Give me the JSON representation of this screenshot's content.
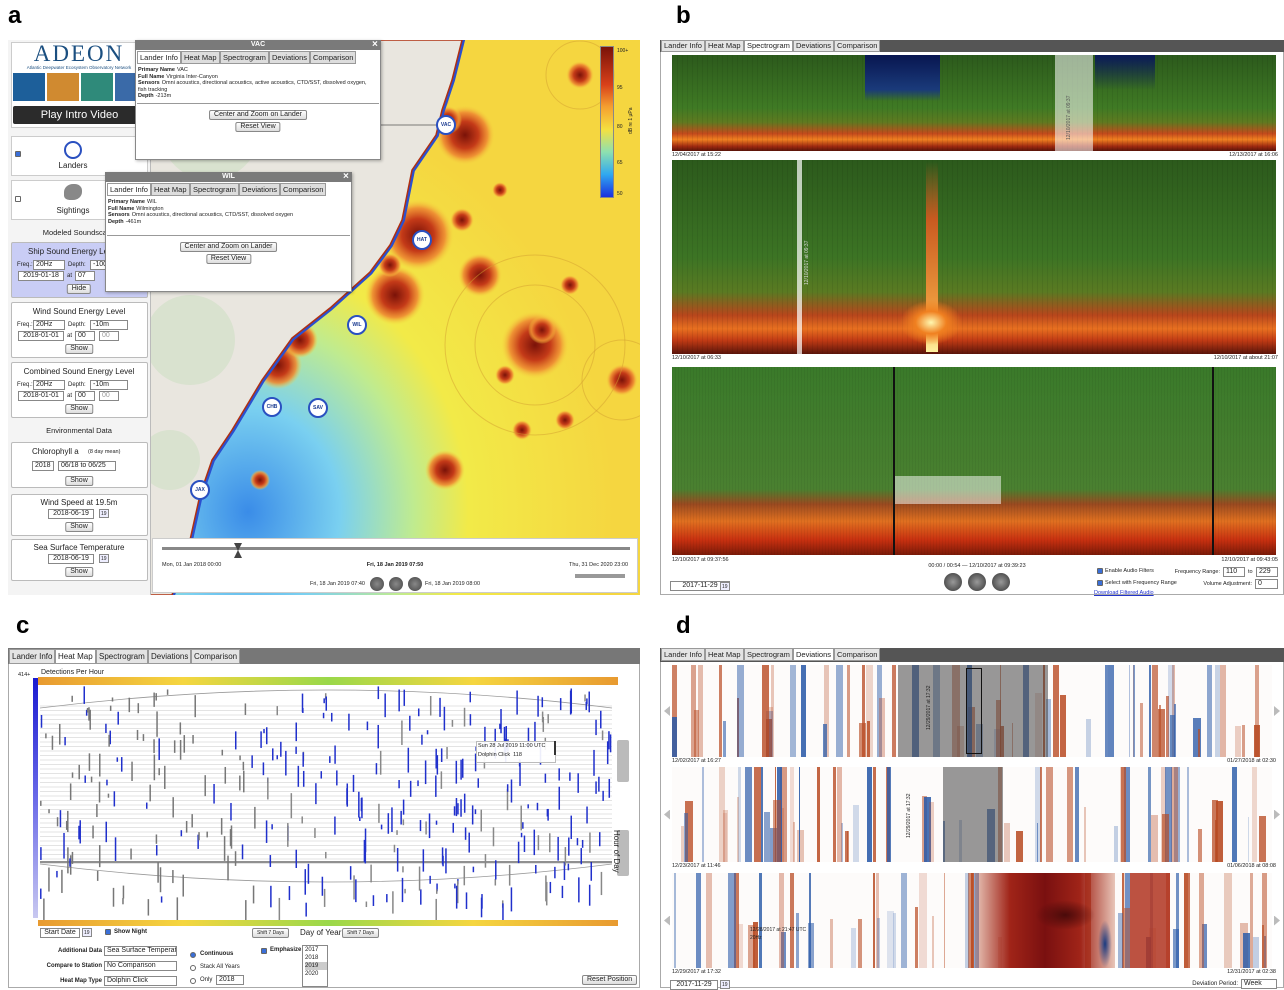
{
  "figure_labels": {
    "a": "a",
    "b": "b",
    "c": "c",
    "d": "d"
  },
  "panel_a": {
    "logo": "ADEON",
    "logo_subtitle": "Atlantic Deepwater Ecosystem Observatory Network",
    "video_button": "Play Intro Video",
    "landers": "Landers",
    "sightings": "Sightings",
    "modeled_header": "Modeled Soundscape",
    "ship": {
      "title": "Ship Sound Energy Le",
      "freq_label": "Freq.:",
      "freq": "20Hz",
      "depth_label": "Depth:",
      "depth": "-100",
      "date": "2019-01-18",
      "at": "at",
      "hour": "07",
      "button": "Hide"
    },
    "wind": {
      "title": "Wind Sound Energy Level",
      "freq_label": "Freq.:",
      "freq": "20Hz",
      "depth_label": "Depth:",
      "depth": "-10m",
      "date": "2018-01-01",
      "at": "at",
      "hour": "00",
      "minute": "00",
      "button": "Show"
    },
    "combined": {
      "title": "Combined Sound Energy Level",
      "freq_label": "Freq.:",
      "freq": "20Hz",
      "depth_label": "Depth:",
      "depth": "-10m",
      "date": "2018-01-01",
      "at": "at",
      "hour": "00",
      "minute": "00",
      "button": "Show"
    },
    "env_header": "Environmental Data",
    "chlorophyll": {
      "title": "Chlorophyll a",
      "note": "(8 day mean)",
      "year": "2018",
      "range": "06/18 to 06/25",
      "button": "Show"
    },
    "wind_speed": {
      "title": "Wind Speed at 19.5m",
      "date": "2018-06-19",
      "calendar": "19",
      "button": "Show"
    },
    "sst": {
      "title": "Sea Surface Temperature",
      "date": "2018-06-19",
      "calendar": "19",
      "button": "Show"
    },
    "popups": [
      {
        "title": "VAC",
        "close": "×",
        "tabs": [
          "Lander Info",
          "Heat Map",
          "Spectrogram",
          "Deviations",
          "Comparison"
        ],
        "fields": [
          {
            "label": "Primary Name",
            "value": "VAC"
          },
          {
            "label": "Full Name",
            "value": "Virginia Inter-Canyon"
          },
          {
            "label": "Sensors",
            "value": "Omni acoustics, directional acoustics, active acoustics, CTD/SST, dissolved oxygen, fish tracking"
          },
          {
            "label": "Depth",
            "value": "-213m"
          }
        ],
        "buttons": [
          "Center and Zoom on Lander",
          "Reset View"
        ]
      },
      {
        "title": "WIL",
        "close": "×",
        "tabs": [
          "Lander Info",
          "Heat Map",
          "Spectrogram",
          "Deviations",
          "Comparison"
        ],
        "fields": [
          {
            "label": "Primary Name",
            "value": "WIL"
          },
          {
            "label": "Full Name",
            "value": "Wilmington"
          },
          {
            "label": "Sensors",
            "value": "Omni acoustics, directional acoustics, CTD/SST, dissolved oxygen"
          },
          {
            "label": "Depth",
            "value": "-461m"
          }
        ],
        "buttons": [
          "Center and Zoom on Lander",
          "Reset View"
        ]
      }
    ],
    "markers": [
      "VAC",
      "HAT",
      "WIL",
      "CHB",
      "SAV",
      "JAX"
    ],
    "colorbar": {
      "ticks": [
        "100+",
        "95",
        "80",
        "65",
        "50"
      ],
      "label": "dB re 1 µPa"
    },
    "timeline": {
      "start": "Mon, 01 Jan 2018 00:00",
      "current": "Fri, 18 Jan 2019 07:50",
      "end": "Thu, 31 Dec 2020 23:00",
      "prev": "Fri, 18 Jan 2019 07:40",
      "next": "Fri, 18 Jan 2019 08:00"
    }
  },
  "panel_b": {
    "tabs": [
      "Lander Info",
      "Heat Map",
      "Spectrogram",
      "Deviations",
      "Comparison"
    ],
    "spectrograms": [
      {
        "start": "12/04/2017 at 15:22",
        "end": "12/13/2017 at 16:06",
        "marker": "12/10/2017 at 09:37"
      },
      {
        "start": "12/10/2017 at 06:33",
        "end": "12/10/2017 at about 21:07",
        "marker": "12/10/2017 at 09:37"
      },
      {
        "start": "12/10/2017 at 09:37:56",
        "end": "12/10/2017 at 09:43:05",
        "playback": "00:00 / 00:54 — 12/10/2017 at 09:39:23"
      }
    ],
    "date": "2017-11-29",
    "calendar": "19",
    "enable_filters": "Enable Audio Filters",
    "select_range": "Select with Frequency Range",
    "download": "Download Filtered Audio",
    "freq_range_label": "Frequency Range:",
    "freq_low": "110",
    "to": "to",
    "freq_high": "229",
    "volume_label": "Volume Adjustment:",
    "volume": "0"
  },
  "panel_c": {
    "tabs": [
      "Lander Info",
      "Heat Map",
      "Spectrogram",
      "Deviations",
      "Comparison"
    ],
    "colorbar_title": "Detections Per Hour",
    "colorbar_max": "414+",
    "tooltip_time": "Sun 28 Jul 2019 11:00 UTC",
    "tooltip_type": "Dolphin Click",
    "tooltip_count": "118",
    "y_axis_label": "Hour of Day",
    "start_date": "Start Date",
    "calendar": "19",
    "show_night": "Show Night",
    "shift_back": "Shift 7 Days",
    "x_axis_label": "Day of Year",
    "shift_forward": "Shift 7 Days",
    "additional_label": "Additional Data",
    "additional_value": "Sea Surface Temperat",
    "compare_label": "Compare to Station",
    "compare_value": "No Comparison",
    "type_label": "Heat Map Type",
    "type_value": "Dolphin Click",
    "continuous": "Continuous",
    "stack": "Stack All Years",
    "only": "Only",
    "only_year": "2018",
    "emphasize": "Emphasize",
    "years": [
      "2017",
      "2018",
      "2019",
      "2020"
    ],
    "reset": "Reset Position"
  },
  "panel_d": {
    "tabs": [
      "Lander Info",
      "Heat Map",
      "Spectrogram",
      "Deviations",
      "Comparison"
    ],
    "strips": [
      {
        "start": "12/02/2017 at 16:27",
        "end": "01/27/2018 at 02:30",
        "marker": "12/29/2017 at 17:32"
      },
      {
        "start": "12/23/2017 at 11:46",
        "end": "01/06/2018 at 08:08",
        "marker": "12/29/2017 at 17:32"
      },
      {
        "start": "12/29/2017 at 17:32",
        "end": "12/31/2017 at 02:38",
        "tooltip_time": "12/28/2017 at 21:47 UTC",
        "tooltip_freq": "20Hz"
      }
    ],
    "date": "2017-11-29",
    "calendar": "19",
    "period_label": "Deviation Period:",
    "period": "Week"
  }
}
